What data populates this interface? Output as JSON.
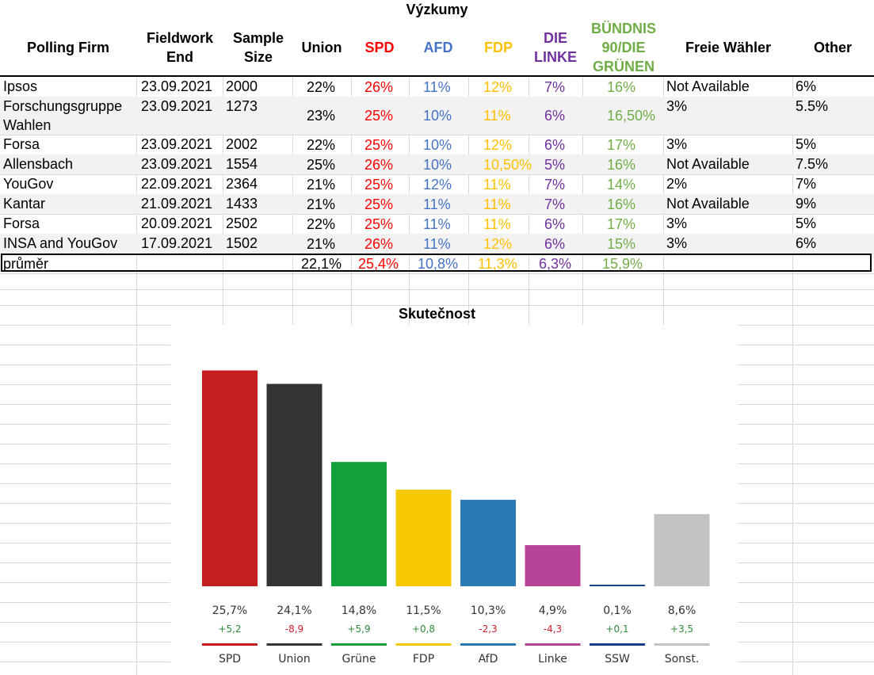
{
  "polls": {
    "title": "Výzkumy",
    "headers": {
      "firm": "Polling Firm",
      "fieldwork": "Fieldwork End",
      "sample": "Sample Size",
      "union": "Union",
      "spd": "SPD",
      "afd": "AFD",
      "fdp": "FDP",
      "linke": "DIE LINKE",
      "gruene": "BÜNDNIS 90/DIE GRÜNEN",
      "fw": "Freie Wähler",
      "other": "Other"
    },
    "rows": [
      {
        "firm": "Ipsos",
        "date": "23.09.2021",
        "sample": "2000",
        "union": "22%",
        "spd": "26%",
        "afd": "11%",
        "fdp": "12%",
        "linke": "7%",
        "gruene": "16%",
        "fw": "Not Available",
        "other": "6%"
      },
      {
        "firm": "Forschungsgruppe",
        "firm2": "Wahlen",
        "date": "23.09.2021",
        "sample": "1273",
        "union": "23%",
        "spd": "25%",
        "afd": "10%",
        "fdp": "11%",
        "linke": "6%",
        "gruene": "16,50%",
        "fw": "3%",
        "other": "5.5%"
      },
      {
        "firm": "Forsa",
        "date": "23.09.2021",
        "sample": "2002",
        "union": "22%",
        "spd": "25%",
        "afd": "10%",
        "fdp": "12%",
        "linke": "6%",
        "gruene": "17%",
        "fw": "3%",
        "other": "5%"
      },
      {
        "firm": "Allensbach",
        "date": "23.09.2021",
        "sample": "1554",
        "union": "25%",
        "spd": "26%",
        "afd": "10%",
        "fdp": "10,50%",
        "linke": "5%",
        "gruene": "16%",
        "fw": "Not Available",
        "other": "7.5%"
      },
      {
        "firm": "YouGov",
        "date": "22.09.2021",
        "sample": "2364",
        "union": "21%",
        "spd": "25%",
        "afd": "12%",
        "fdp": "11%",
        "linke": "7%",
        "gruene": "14%",
        "fw": "2%",
        "other": "7%"
      },
      {
        "firm": "Kantar",
        "date": "21.09.2021",
        "sample": "1433",
        "union": "21%",
        "spd": "25%",
        "afd": "11%",
        "fdp": "11%",
        "linke": "7%",
        "gruene": "16%",
        "fw": "Not Available",
        "other": "9%"
      },
      {
        "firm": "Forsa",
        "date": "20.09.2021",
        "sample": "2502",
        "union": "22%",
        "spd": "25%",
        "afd": "11%",
        "fdp": "11%",
        "linke": "6%",
        "gruene": "17%",
        "fw": "3%",
        "other": "5%"
      },
      {
        "firm": "INSA and YouGov",
        "date": "17.09.2021",
        "sample": "1502",
        "union": "21%",
        "spd": "26%",
        "afd": "11%",
        "fdp": "12%",
        "linke": "6%",
        "gruene": "15%",
        "fw": "3%",
        "other": "6%"
      }
    ],
    "average": {
      "label": "průměr",
      "union": "22,1%",
      "spd": "25,4%",
      "afd": "10,8%",
      "fdp": "11,3%",
      "linke": "6,3%",
      "gruene": "15,9%"
    }
  },
  "colors": {
    "union_text": "#000000",
    "spd_text": "#ff0000",
    "afd_text": "#4472c4",
    "fdp_text": "#ffc000",
    "linke_text": "#7030a0",
    "gruene_text": "#70ad47",
    "positive": "#2e8b3a",
    "negative": "#d0202a"
  },
  "chart_data": {
    "type": "bar",
    "title": "Skutečnost",
    "categories": [
      "SPD",
      "Union",
      "Grüne",
      "FDP",
      "AfD",
      "Linke",
      "SSW",
      "Sonst."
    ],
    "values": [
      25.7,
      24.1,
      14.8,
      11.5,
      10.3,
      4.9,
      0.1,
      8.6
    ],
    "value_labels": [
      "25,7%",
      "24,1%",
      "14,8%",
      "11,5%",
      "10,3%",
      "4,9%",
      "0,1%",
      "8,6%"
    ],
    "changes": [
      5.2,
      -8.9,
      5.9,
      0.8,
      -2.3,
      -4.3,
      0.1,
      3.5
    ],
    "change_labels": [
      "+5,2",
      "-8,9",
      "+5,9",
      "+0,8",
      "-2,3",
      "-4,3",
      "+0,1",
      "+3,5"
    ],
    "bar_colors": [
      "#c41e1e",
      "#333333",
      "#14a03a",
      "#f5c800",
      "#2a79b5",
      "#b8449a",
      "#1b3f8f",
      "#c3c3c3"
    ],
    "ylim": [
      0,
      30
    ],
    "xlabel": "",
    "ylabel": "",
    "grid": false
  }
}
